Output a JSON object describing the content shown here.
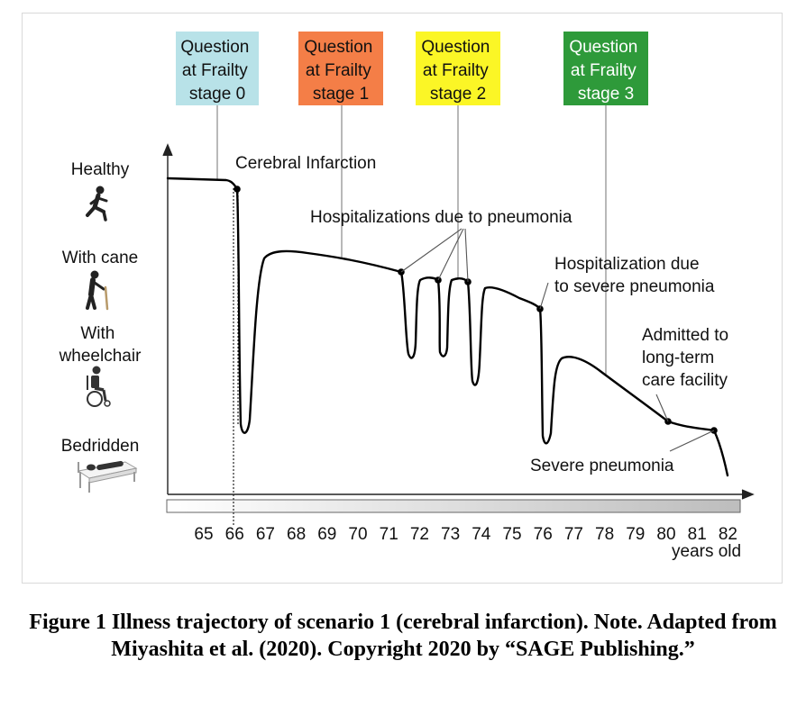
{
  "stages": [
    {
      "label_lines": [
        "Question",
        "at Frailty",
        "stage 0"
      ],
      "color": "#b8e2e8",
      "text_color": "#1a1a1a"
    },
    {
      "label_lines": [
        "Question",
        "at Frailty",
        "stage 1"
      ],
      "color": "#f47e47",
      "text_color": "#1a1a1a"
    },
    {
      "label_lines": [
        "Question",
        "at Frailty",
        "stage 2"
      ],
      "color": "#fbf626",
      "text_color": "#1a1a1a"
    },
    {
      "label_lines": [
        "Question",
        "at Frailty",
        "stage 3"
      ],
      "color": "#2e9a3a",
      "text_color": "#ffffff"
    }
  ],
  "levels": [
    {
      "label_lines": [
        "Healthy"
      ],
      "icon": "running-person-icon"
    },
    {
      "label_lines": [
        "With cane"
      ],
      "icon": "person-with-cane-icon"
    },
    {
      "label_lines": [
        "With",
        "wheelchair"
      ],
      "icon": "wheelchair-icon"
    },
    {
      "label_lines": [
        "Bedridden"
      ],
      "icon": "bedridden-icon"
    }
  ],
  "annotations": {
    "cerebral_infarction": "Cerebral Infarction",
    "hospitalizations": "Hospitalizations due to pneumonia",
    "hospitalization_severe_lines": [
      "Hospitalization due",
      "to severe pneumonia"
    ],
    "admitted_lines": [
      "Admitted to",
      "long-term",
      "care facility"
    ],
    "severe_pneumonia": "Severe pneumonia"
  },
  "axis": {
    "ticks": [
      "65",
      "66",
      "67",
      "68",
      "69",
      "70",
      "71",
      "72",
      "73",
      "74",
      "75",
      "76",
      "77",
      "78",
      "79",
      "80",
      "81",
      "82"
    ],
    "unit": "years old"
  },
  "caption": "Figure 1 Illness trajectory of scenario 1 (cerebral infarction). Note. Adapted from Miyashita et al. (2020). Copyright 2020 by “SAGE Publishing.”"
}
